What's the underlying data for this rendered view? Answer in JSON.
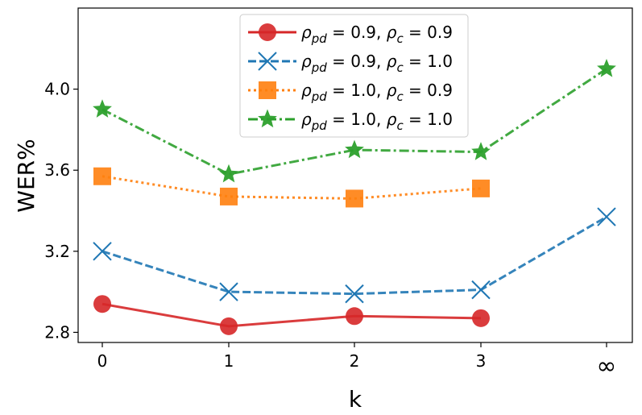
{
  "chart_data": {
    "type": "line",
    "title": "",
    "xlabel": "k",
    "ylabel": "WER%",
    "categories": [
      "0",
      "1",
      "2",
      "3",
      "∞"
    ],
    "y_ticks": [
      "2.8",
      "3.2",
      "3.6",
      "4.0"
    ],
    "ylim": [
      2.75,
      4.4
    ],
    "grid": false,
    "legend_position": "top-center",
    "series": [
      {
        "name": "ρpd = 0.9, ρc = 0.9",
        "legend": {
          "a": "0.9",
          "b": "0.9"
        },
        "values": [
          2.94,
          2.83,
          2.88,
          2.87,
          null
        ],
        "color": "#d62728",
        "marker": "circle",
        "dash": "solid"
      },
      {
        "name": "ρpd = 0.9, ρc = 1.0",
        "legend": {
          "a": "0.9",
          "b": "1.0"
        },
        "values": [
          3.2,
          3.0,
          2.99,
          3.01,
          3.37
        ],
        "color": "#1f77b4",
        "marker": "x",
        "dash": "dashed"
      },
      {
        "name": "ρpd = 1.0, ρc = 0.9",
        "legend": {
          "a": "1.0",
          "b": "0.9"
        },
        "values": [
          3.57,
          3.47,
          3.46,
          3.51,
          null
        ],
        "color": "#ff7f0e",
        "marker": "square",
        "dash": "dotted"
      },
      {
        "name": "ρpd = 1.0, ρc = 1.0",
        "legend": {
          "a": "1.0",
          "b": "1.0"
        },
        "values": [
          3.9,
          3.58,
          3.7,
          3.69,
          4.1
        ],
        "color": "#2ca02c",
        "marker": "star",
        "dash": "dashdot"
      }
    ]
  }
}
